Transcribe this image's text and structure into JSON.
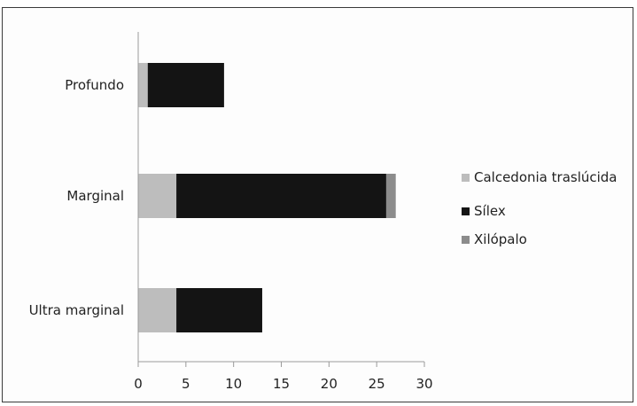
{
  "chart_data": {
    "type": "bar",
    "orientation": "horizontal",
    "stacked": true,
    "categories": [
      "Profundo",
      "Marginal",
      "Ultra marginal"
    ],
    "series": [
      {
        "name": "Calcedonia traslúcida",
        "color": "#bdbdbd",
        "values": [
          1,
          4,
          4
        ]
      },
      {
        "name": "Sílex",
        "color": "#141414",
        "values": [
          8,
          22,
          9
        ]
      },
      {
        "name": "Xilópalo",
        "color": "#8c8c8c",
        "values": [
          0,
          1,
          0
        ]
      }
    ],
    "xlim": [
      0,
      30
    ],
    "xticks": [
      "0",
      "5",
      "10",
      "15",
      "20",
      "25",
      "30"
    ],
    "grid": false,
    "legend_position": "right"
  }
}
